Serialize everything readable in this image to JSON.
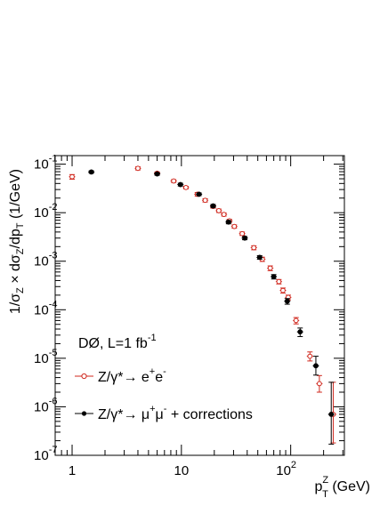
{
  "chart_data": {
    "type": "scatter",
    "x_scale": "log",
    "y_scale": "log",
    "xlim": [
      0.7,
      310
    ],
    "ylim": [
      1e-07,
      0.15
    ],
    "x_major_ticks": [
      {
        "value": 1,
        "label": "1"
      },
      {
        "value": 10,
        "label": "10"
      },
      {
        "value": 100,
        "label": "10",
        "exp": "2"
      }
    ],
    "y_major_ticks": [
      {
        "value": 1e-07,
        "label": "10",
        "exp": "-7"
      },
      {
        "value": 1e-06,
        "label": "10",
        "exp": "-6"
      },
      {
        "value": 1e-05,
        "label": "10",
        "exp": "-5"
      },
      {
        "value": 0.0001,
        "label": "10",
        "exp": "-4"
      },
      {
        "value": 0.001,
        "label": "10",
        "exp": "-3"
      },
      {
        "value": 0.01,
        "label": "10",
        "exp": "-2"
      },
      {
        "value": 0.1,
        "label": "10",
        "exp": "-1"
      }
    ],
    "xlabel": {
      "base": "p",
      "sup": "Z",
      "sub": "T",
      "suffix": " (GeV)"
    },
    "ylabel": "1/σZ × dσZ/dpT (1/GeV)",
    "annotation": {
      "base": "DØ, L=1 fb",
      "sup": "-1"
    },
    "legend_placement": "bottom-left",
    "series": [
      {
        "name": "Z/γ*→ e+e-",
        "legend": {
          "text": "Z/γ*→ e",
          "sup1": "+",
          "mid": "e",
          "sup2": "-"
        },
        "color": "#d0281e",
        "marker": "open-circle",
        "points": [
          {
            "x": 1.0,
            "y": 0.055,
            "lo": 0.049,
            "hi": 0.061
          },
          {
            "x": 4.0,
            "y": 0.082,
            "lo": 0.076,
            "hi": 0.088
          },
          {
            "x": 6.0,
            "y": 0.065,
            "lo": 0.061,
            "hi": 0.069
          },
          {
            "x": 8.5,
            "y": 0.045,
            "lo": 0.042,
            "hi": 0.048
          },
          {
            "x": 11.0,
            "y": 0.033,
            "lo": 0.031,
            "hi": 0.035
          },
          {
            "x": 14.0,
            "y": 0.024,
            "lo": 0.022,
            "hi": 0.026
          },
          {
            "x": 16.5,
            "y": 0.018,
            "lo": 0.0166,
            "hi": 0.0194
          },
          {
            "x": 19.5,
            "y": 0.0135,
            "lo": 0.0124,
            "hi": 0.0146
          },
          {
            "x": 22.0,
            "y": 0.011,
            "lo": 0.0101,
            "hi": 0.0119
          },
          {
            "x": 24.5,
            "y": 0.0092,
            "lo": 0.0085,
            "hi": 0.0099
          },
          {
            "x": 27.5,
            "y": 0.0068,
            "lo": 0.0063,
            "hi": 0.0073
          },
          {
            "x": 30.5,
            "y": 0.0052,
            "lo": 0.0048,
            "hi": 0.0056
          },
          {
            "x": 36.0,
            "y": 0.0037,
            "lo": 0.0034,
            "hi": 0.004
          },
          {
            "x": 46.0,
            "y": 0.0019,
            "lo": 0.00172,
            "hi": 0.00208
          },
          {
            "x": 55.0,
            "y": 0.0011,
            "lo": 0.00099,
            "hi": 0.00121
          },
          {
            "x": 65.0,
            "y": 0.00072,
            "lo": 0.00064,
            "hi": 0.0008
          },
          {
            "x": 78.0,
            "y": 0.00038,
            "lo": 0.00034,
            "hi": 0.00042
          },
          {
            "x": 85.0,
            "y": 0.00025,
            "lo": 0.00022,
            "hi": 0.00028
          },
          {
            "x": 95.0,
            "y": 0.00018,
            "lo": 0.00016,
            "hi": 0.0002
          },
          {
            "x": 112.0,
            "y": 6e-05,
            "lo": 5.1e-05,
            "hi": 6.9e-05
          },
          {
            "x": 150.0,
            "y": 1.1e-05,
            "lo": 8.8e-06,
            "hi": 1.35e-05
          },
          {
            "x": 183.0,
            "y": 3e-06,
            "lo": 2e-06,
            "hi": 4.4e-06
          },
          {
            "x": 245.0,
            "y": 7e-07,
            "lo": 1.8e-07,
            "hi": 3.2e-06
          }
        ]
      },
      {
        "name": "Z/γ*→ μ+μ- + corrections",
        "legend": {
          "text": "Z/γ*→ μ",
          "sup1": "+",
          "mid": "μ",
          "sup2": "-",
          "suffix": " + corrections"
        },
        "color": "#000000",
        "marker": "filled-circle",
        "points": [
          {
            "x": 1.5,
            "y": 0.069,
            "lo": 0.065,
            "hi": 0.073
          },
          {
            "x": 6.0,
            "y": 0.063,
            "lo": 0.059,
            "hi": 0.067
          },
          {
            "x": 9.8,
            "y": 0.038,
            "lo": 0.0355,
            "hi": 0.0405
          },
          {
            "x": 14.5,
            "y": 0.024,
            "lo": 0.0225,
            "hi": 0.0255
          },
          {
            "x": 19.5,
            "y": 0.0138,
            "lo": 0.0128,
            "hi": 0.0148
          },
          {
            "x": 27.0,
            "y": 0.0064,
            "lo": 0.0059,
            "hi": 0.0069
          },
          {
            "x": 38.0,
            "y": 0.003,
            "lo": 0.00277,
            "hi": 0.00323
          },
          {
            "x": 52.0,
            "y": 0.0012,
            "lo": 0.0011,
            "hi": 0.0013
          },
          {
            "x": 70.0,
            "y": 0.00048,
            "lo": 0.00043,
            "hi": 0.00053
          },
          {
            "x": 93.0,
            "y": 0.00015,
            "lo": 0.00013,
            "hi": 0.00017
          },
          {
            "x": 122.0,
            "y": 3.5e-05,
            "lo": 2.8e-05,
            "hi": 4.2e-05
          },
          {
            "x": 170.0,
            "y": 7e-06,
            "lo": 4.5e-06,
            "hi": 1.1e-05
          },
          {
            "x": 235.0,
            "y": 7e-07,
            "lo": 1.7e-07,
            "hi": 3.2e-06
          }
        ]
      }
    ]
  }
}
